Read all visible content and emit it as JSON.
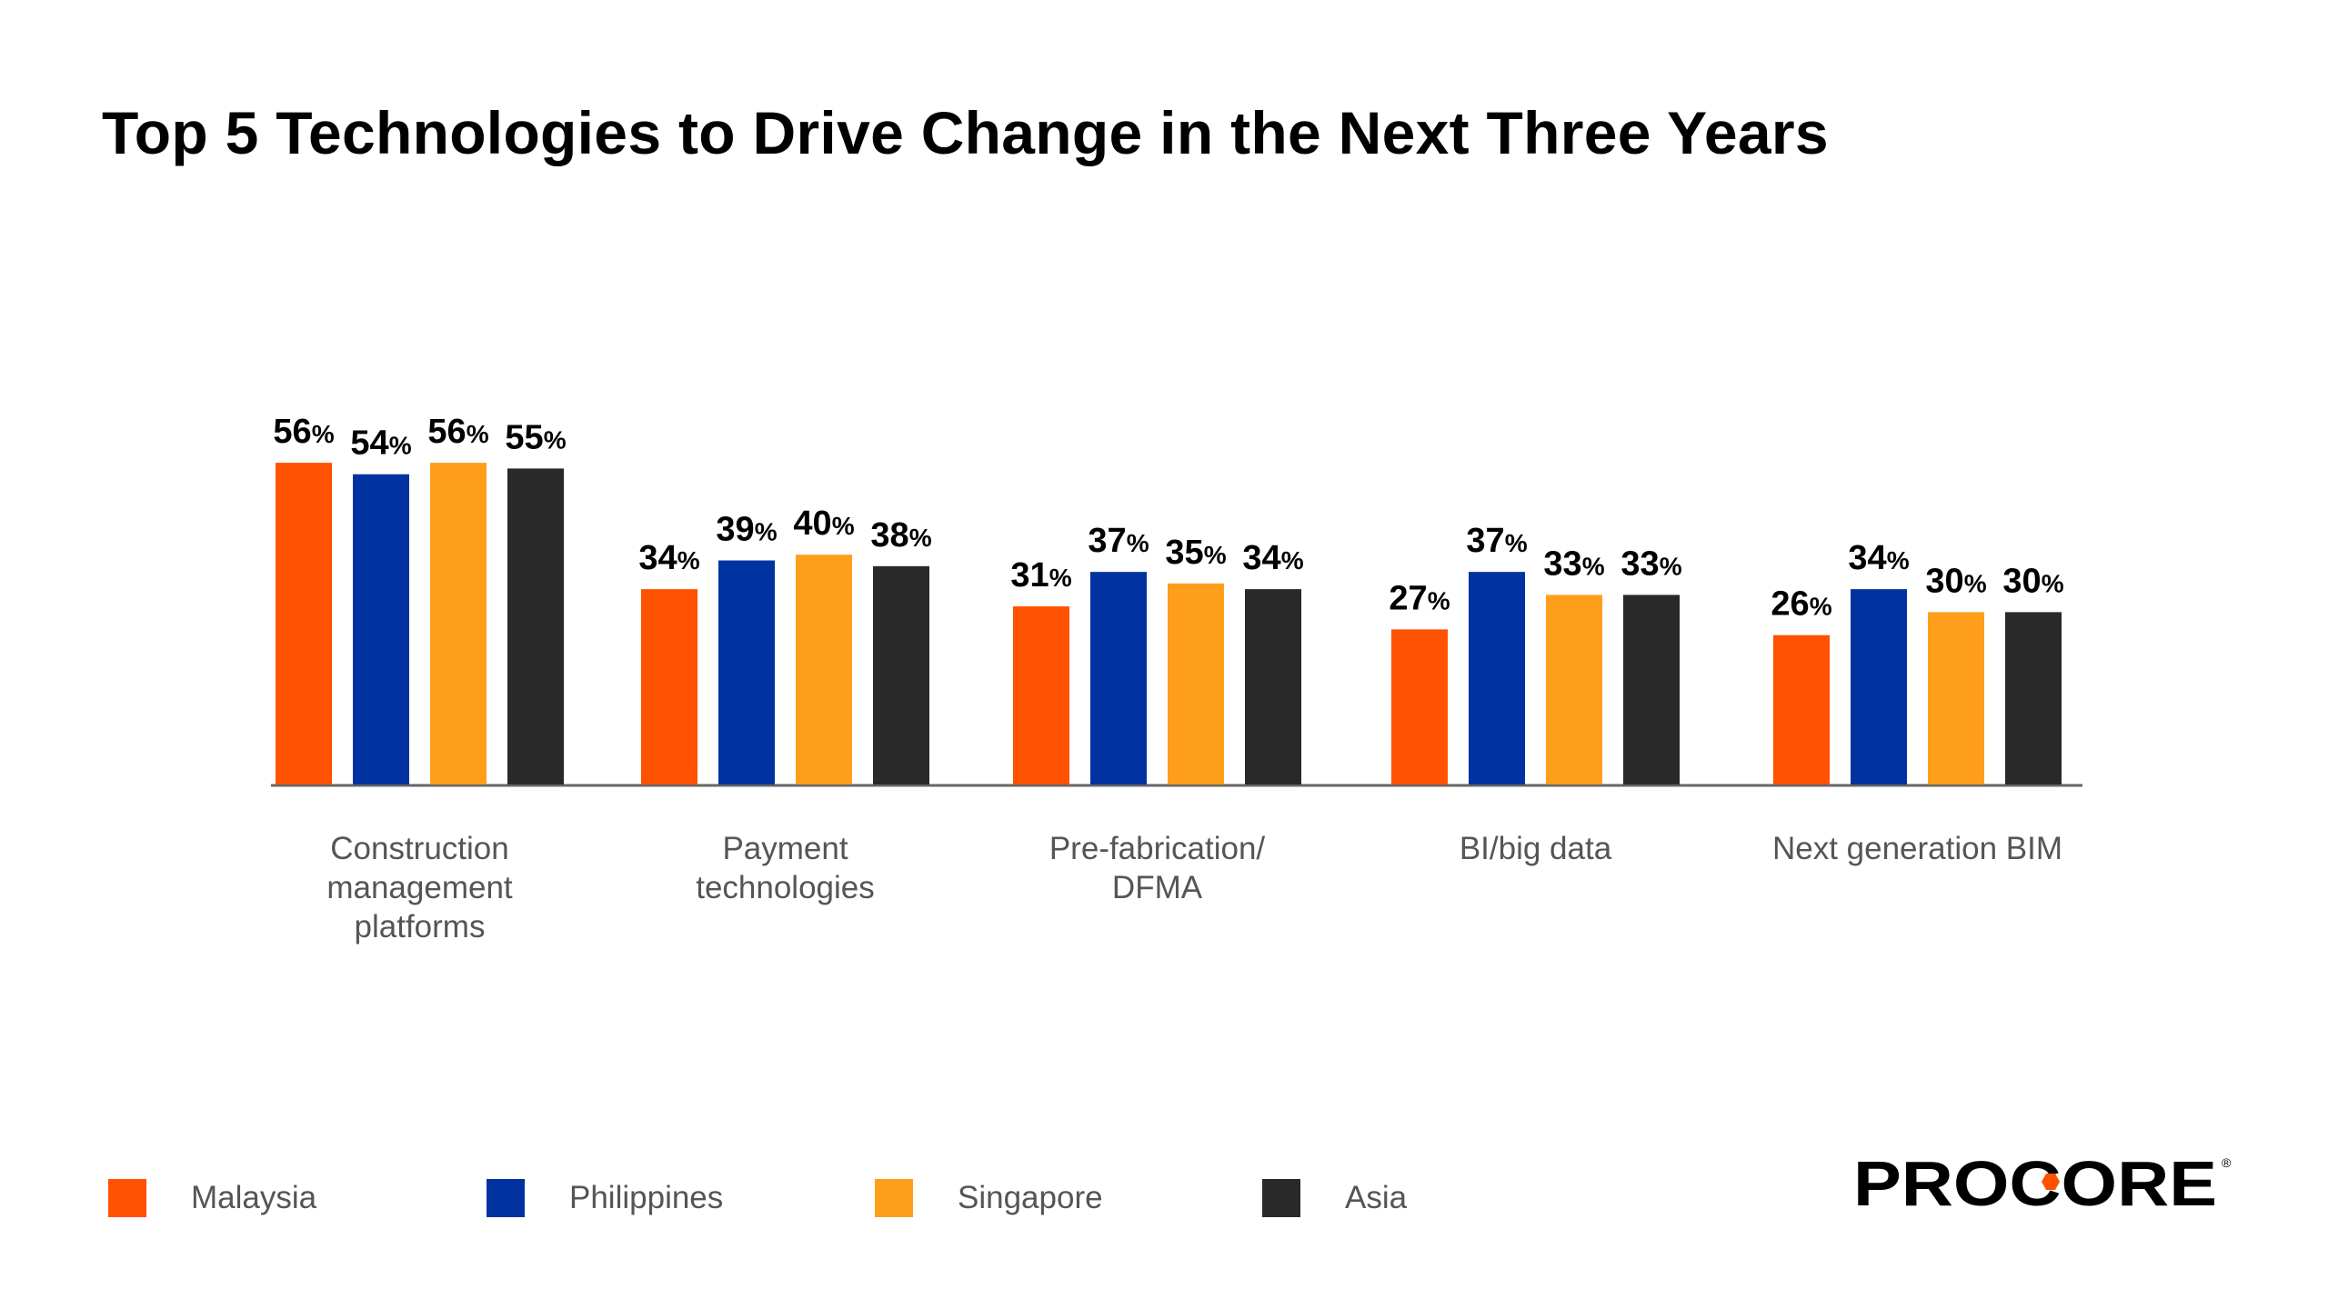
{
  "title": "Top 5 Technologies to Drive Change in the Next Three Years",
  "chart_data": {
    "type": "bar",
    "title": "Top 5 Technologies to Drive Change in the Next Three Years",
    "categories": [
      [
        "Construction",
        "management",
        "platforms"
      ],
      [
        "Payment",
        "technologies"
      ],
      [
        "Pre-fabrication/",
        "DFMA"
      ],
      [
        "BI/big data"
      ],
      [
        "Next generation BIM"
      ]
    ],
    "series": [
      {
        "name": "Malaysia",
        "color": "#FF5200",
        "values": [
          56,
          34,
          31,
          27,
          26
        ]
      },
      {
        "name": "Philippines",
        "color": "#0033A0",
        "values": [
          54,
          39,
          37,
          37,
          34
        ]
      },
      {
        "name": "Singapore",
        "color": "#FF9E1B",
        "values": [
          56,
          40,
          35,
          33,
          30
        ]
      },
      {
        "name": "Asia",
        "color": "#292929",
        "values": [
          55,
          38,
          34,
          33,
          30
        ]
      }
    ],
    "value_suffix": "%",
    "ylim": [
      0,
      60
    ],
    "grid": false,
    "legend_position": "bottom-left"
  },
  "logo": {
    "text": "PROCORE"
  }
}
